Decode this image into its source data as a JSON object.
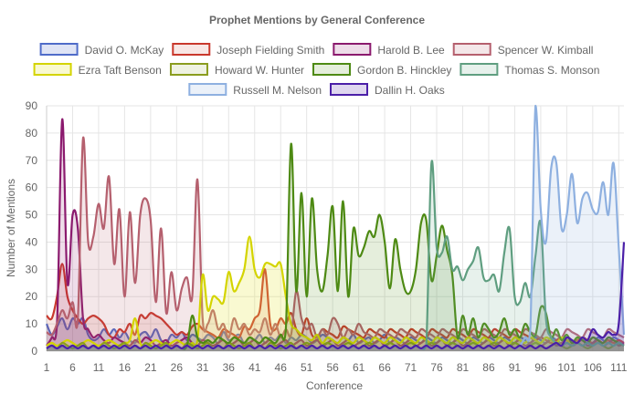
{
  "chart_data": {
    "type": "line",
    "title": "Prophet Mentions by General Conference",
    "xlabel": "Conference",
    "ylabel": "Number of Mentions",
    "ylim": [
      0,
      90
    ],
    "yticks": [
      0,
      10,
      20,
      30,
      40,
      50,
      60,
      70,
      80,
      90
    ],
    "x_range": [
      1,
      112
    ],
    "xticks": [
      1,
      6,
      11,
      16,
      21,
      26,
      31,
      36,
      41,
      46,
      51,
      56,
      61,
      66,
      71,
      76,
      81,
      86,
      91,
      96,
      101,
      106,
      111
    ],
    "grid": true,
    "legend_position": "top",
    "filled": true,
    "series": [
      {
        "name": "David O. McKay",
        "color": "#4f6cc9",
        "fill": "rgba(79,108,201,0.18)",
        "values": [
          10,
          6,
          9,
          12,
          8,
          12,
          10,
          12,
          6,
          4,
          5,
          8,
          6,
          8,
          5,
          7,
          4,
          3,
          6,
          7,
          5,
          8,
          4,
          3,
          6,
          5,
          7,
          4,
          6,
          5,
          4,
          6,
          5,
          3,
          7,
          4,
          5,
          6,
          3,
          5,
          4,
          6,
          3,
          5,
          4,
          6,
          3,
          5,
          4,
          6,
          5,
          3,
          4,
          6,
          5,
          4,
          3,
          5,
          4,
          6,
          3,
          4,
          5,
          3,
          4,
          6,
          3,
          5,
          4,
          3,
          5,
          4,
          3,
          5,
          4,
          3,
          5,
          4,
          3,
          5,
          4,
          3,
          5,
          4,
          3,
          5,
          4,
          3,
          5,
          4,
          3,
          5,
          4,
          3,
          5,
          4,
          3,
          5,
          4,
          3,
          5,
          4,
          3,
          5,
          4,
          3,
          5,
          4,
          3,
          5,
          4,
          3
        ]
      },
      {
        "name": "Joseph Fielding Smith",
        "color": "#c9382c",
        "fill": "rgba(201,56,44,0.12)",
        "values": [
          13,
          12,
          20,
          32,
          20,
          15,
          12,
          10,
          12,
          13,
          12,
          10,
          6,
          5,
          8,
          7,
          10,
          6,
          13,
          12,
          14,
          13,
          12,
          10,
          8,
          6,
          7,
          6,
          9,
          10,
          8,
          7,
          6,
          5,
          8,
          7,
          6,
          5,
          9,
          8,
          12,
          15,
          30,
          10,
          8,
          12,
          10,
          14,
          8,
          6,
          12,
          6,
          5,
          8,
          7,
          6,
          5,
          9,
          8,
          7,
          6,
          5,
          8,
          7,
          6,
          5,
          8,
          7,
          6,
          5,
          8,
          7,
          6,
          5,
          8,
          7,
          6,
          5,
          8,
          7,
          6,
          5,
          8,
          7,
          6,
          5,
          8,
          7,
          6,
          5,
          8,
          7,
          6,
          5,
          4,
          5,
          4,
          3,
          4,
          5,
          4,
          3,
          4,
          5,
          4,
          3,
          4,
          3,
          4,
          3,
          4,
          3
        ]
      },
      {
        "name": "Harold B. Lee",
        "color": "#8b1a6e",
        "fill": "rgba(139,26,110,0.15)",
        "values": [
          2,
          5,
          10,
          85,
          25,
          50,
          45,
          12,
          8,
          5,
          6,
          4,
          3,
          5,
          4,
          3,
          2,
          4,
          3,
          5,
          4,
          2,
          3,
          4,
          2,
          3,
          4,
          5,
          3,
          2,
          4,
          3,
          2,
          3,
          4,
          2,
          3,
          4,
          2,
          3,
          4,
          2,
          3,
          4,
          2,
          3,
          4,
          2,
          3,
          4,
          2,
          3,
          4,
          2,
          3,
          4,
          2,
          3,
          4,
          2,
          3,
          4,
          2,
          3,
          4,
          2,
          3,
          4,
          2,
          3,
          4,
          2,
          3,
          4,
          2,
          3,
          4,
          2,
          3,
          4,
          2,
          3,
          4,
          2,
          3,
          4,
          2,
          3,
          4,
          2,
          3,
          4,
          2,
          3,
          4,
          2,
          3,
          4,
          2,
          3,
          4,
          2,
          3,
          4,
          2,
          3,
          4,
          2,
          3,
          4,
          2,
          3
        ]
      },
      {
        "name": "Spencer W. Kimball",
        "color": "#b5606e",
        "fill": "rgba(181,96,110,0.15)",
        "values": [
          7,
          6,
          10,
          15,
          12,
          18,
          12,
          78,
          40,
          42,
          54,
          45,
          64,
          32,
          52,
          20,
          51,
          25,
          50,
          56,
          48,
          18,
          45,
          14,
          29,
          15,
          23,
          27,
          20,
          63,
          12,
          10,
          15,
          8,
          10,
          5,
          12,
          8,
          10,
          6,
          8,
          7,
          12,
          6,
          10,
          5,
          8,
          6,
          22,
          12,
          8,
          10,
          5,
          8,
          6,
          12,
          10,
          5,
          8,
          6,
          10,
          7,
          6,
          5,
          8,
          7,
          6,
          5,
          8,
          7,
          6,
          5,
          8,
          7,
          6,
          5,
          8,
          7,
          6,
          5,
          8,
          7,
          6,
          5,
          8,
          7,
          6,
          5,
          8,
          7,
          6,
          5,
          8,
          7,
          6,
          5,
          8,
          7,
          6,
          5,
          8,
          7,
          6,
          5,
          8,
          7,
          6,
          5,
          8,
          7,
          6,
          5
        ]
      },
      {
        "name": "Ezra Taft Benson",
        "color": "#d4d400",
        "fill": "rgba(230,230,70,0.25)",
        "values": [
          2,
          3,
          2,
          3,
          4,
          3,
          2,
          3,
          4,
          3,
          2,
          3,
          4,
          3,
          2,
          3,
          4,
          12,
          3,
          2,
          3,
          4,
          3,
          2,
          3,
          4,
          3,
          2,
          3,
          4,
          28,
          15,
          20,
          19,
          18,
          29,
          22,
          25,
          30,
          42,
          30,
          27,
          32,
          32,
          31,
          32,
          20,
          10,
          8,
          6,
          5,
          4,
          6,
          3,
          5,
          4,
          3,
          5,
          4,
          3,
          5,
          4,
          3,
          5,
          4,
          3,
          5,
          4,
          3,
          5,
          4,
          3,
          5,
          4,
          3,
          5,
          4,
          3,
          5,
          4,
          3,
          5,
          4,
          3,
          5,
          4,
          3,
          5,
          4,
          3,
          5,
          4,
          3,
          5,
          4,
          3,
          5,
          4,
          3,
          5,
          4,
          3,
          5,
          4,
          3,
          5,
          4,
          3,
          5,
          4,
          3,
          2
        ]
      },
      {
        "name": "Howard W. Hunter",
        "color": "#8a9c1e",
        "fill": "rgba(150,170,60,0.15)",
        "values": [
          1,
          2,
          1,
          3,
          2,
          1,
          2,
          3,
          1,
          2,
          1,
          3,
          2,
          1,
          2,
          3,
          1,
          2,
          1,
          3,
          2,
          1,
          2,
          3,
          1,
          2,
          1,
          3,
          2,
          1,
          2,
          3,
          1,
          2,
          1,
          3,
          2,
          1,
          2,
          3,
          1,
          2,
          1,
          3,
          2,
          1,
          2,
          3,
          1,
          2,
          3,
          2,
          1,
          2,
          3,
          2,
          1,
          2,
          3,
          2,
          1,
          2,
          3,
          2,
          1,
          2,
          3,
          2,
          1,
          2,
          3,
          2,
          1,
          2,
          3,
          2,
          1,
          2,
          3,
          2,
          1,
          2,
          3,
          2,
          1,
          2,
          3,
          2,
          1,
          2,
          3,
          2,
          1,
          2,
          3,
          2,
          1,
          2,
          3,
          2,
          1,
          2,
          3,
          2,
          1,
          2,
          3,
          2,
          1,
          2,
          3,
          2
        ]
      },
      {
        "name": "Gordon B. Hinckley",
        "color": "#4e8a14",
        "fill": "rgba(78,138,20,0.15)",
        "values": [
          1,
          2,
          1,
          2,
          1,
          2,
          1,
          2,
          1,
          2,
          1,
          2,
          1,
          2,
          1,
          2,
          1,
          2,
          1,
          2,
          1,
          2,
          1,
          2,
          1,
          2,
          1,
          2,
          13,
          5,
          3,
          4,
          3,
          5,
          4,
          3,
          5,
          4,
          3,
          5,
          4,
          3,
          5,
          4,
          3,
          6,
          8,
          76,
          22,
          58,
          20,
          56,
          30,
          22,
          35,
          53,
          22,
          55,
          20,
          45,
          35,
          38,
          44,
          42,
          50,
          40,
          23,
          41,
          30,
          22,
          22,
          30,
          47,
          48,
          26,
          35,
          46,
          37,
          28,
          5,
          13,
          6,
          12,
          5,
          10,
          8,
          5,
          7,
          12,
          6,
          8,
          5,
          10,
          7,
          6,
          16,
          14,
          5,
          8,
          4,
          6,
          3,
          5,
          4,
          3,
          5,
          4,
          3,
          5,
          4,
          3,
          2
        ]
      },
      {
        "name": "Thomas S. Monson",
        "color": "#5f9e80",
        "fill": "rgba(95,158,128,0.15)",
        "values": [
          1,
          2,
          1,
          2,
          1,
          2,
          1,
          2,
          1,
          2,
          1,
          2,
          1,
          2,
          1,
          2,
          1,
          2,
          1,
          2,
          1,
          2,
          1,
          2,
          1,
          2,
          1,
          2,
          1,
          2,
          1,
          2,
          1,
          2,
          1,
          2,
          1,
          2,
          1,
          2,
          1,
          2,
          1,
          2,
          1,
          2,
          1,
          2,
          1,
          2,
          1,
          2,
          1,
          2,
          1,
          2,
          1,
          2,
          1,
          2,
          1,
          2,
          1,
          2,
          1,
          2,
          1,
          2,
          1,
          2,
          1,
          2,
          1,
          2,
          69,
          38,
          36,
          42,
          30,
          31,
          26,
          30,
          33,
          38,
          27,
          26,
          28,
          22,
          36,
          45,
          20,
          18,
          25,
          20,
          35,
          47,
          12,
          5,
          3,
          2,
          3,
          2,
          3,
          2,
          3,
          2,
          3,
          2,
          3,
          2,
          3,
          2
        ]
      },
      {
        "name": "Russell M. Nelson",
        "color": "#8eb0e0",
        "fill": "rgba(142,176,224,0.18)",
        "values": [
          1,
          2,
          1,
          2,
          1,
          2,
          1,
          2,
          1,
          2,
          1,
          2,
          1,
          2,
          1,
          2,
          1,
          2,
          1,
          2,
          1,
          2,
          1,
          2,
          1,
          2,
          1,
          2,
          1,
          2,
          1,
          2,
          1,
          2,
          1,
          2,
          1,
          2,
          1,
          2,
          1,
          2,
          1,
          2,
          1,
          2,
          1,
          2,
          1,
          2,
          1,
          2,
          1,
          2,
          1,
          2,
          1,
          2,
          1,
          2,
          1,
          2,
          1,
          2,
          1,
          2,
          1,
          2,
          1,
          2,
          1,
          2,
          1,
          2,
          1,
          2,
          1,
          2,
          1,
          2,
          1,
          2,
          1,
          2,
          1,
          2,
          1,
          2,
          1,
          2,
          1,
          2,
          5,
          8,
          90,
          52,
          40,
          67,
          69,
          45,
          50,
          65,
          47,
          56,
          58,
          52,
          51,
          62,
          50,
          69,
          38,
          6
        ]
      },
      {
        "name": "Dallin H. Oaks",
        "color": "#4b1fa8",
        "fill": "rgba(75,31,168,0.18)",
        "values": [
          1,
          2,
          1,
          2,
          1,
          2,
          1,
          2,
          1,
          2,
          1,
          2,
          1,
          2,
          1,
          2,
          1,
          2,
          1,
          2,
          1,
          2,
          1,
          2,
          1,
          2,
          1,
          2,
          1,
          2,
          1,
          2,
          1,
          2,
          1,
          2,
          1,
          2,
          1,
          2,
          1,
          2,
          1,
          2,
          1,
          2,
          1,
          2,
          1,
          2,
          1,
          2,
          1,
          2,
          1,
          2,
          1,
          2,
          1,
          2,
          1,
          2,
          1,
          2,
          1,
          2,
          1,
          2,
          1,
          2,
          1,
          2,
          1,
          2,
          1,
          2,
          1,
          2,
          1,
          2,
          1,
          2,
          1,
          2,
          1,
          2,
          1,
          2,
          1,
          2,
          1,
          2,
          1,
          2,
          1,
          2,
          1,
          2,
          3,
          2,
          5,
          4,
          3,
          5,
          4,
          8,
          6,
          5,
          7,
          6,
          10,
          40
        ]
      }
    ]
  }
}
